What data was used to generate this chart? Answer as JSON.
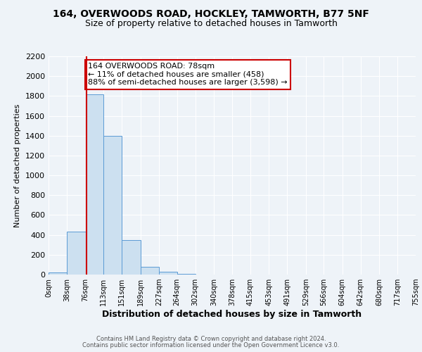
{
  "title1": "164, OVERWOODS ROAD, HOCKLEY, TAMWORTH, B77 5NF",
  "title2": "Size of property relative to detached houses in Tamworth",
  "xlabel": "Distribution of detached houses by size in Tamworth",
  "ylabel": "Number of detached properties",
  "bar_edges": [
    0,
    38,
    76,
    113,
    151,
    189,
    227,
    264,
    302,
    340,
    378,
    415,
    453,
    491,
    529,
    566,
    604,
    642,
    680,
    717,
    755
  ],
  "bar_heights": [
    20,
    430,
    1820,
    1400,
    350,
    75,
    25,
    5,
    0,
    0,
    0,
    0,
    0,
    0,
    0,
    0,
    0,
    0,
    0,
    0
  ],
  "bar_color": "#cce0f0",
  "bar_edge_color": "#5b9bd5",
  "property_size": 78,
  "vline_color": "#cc0000",
  "annotation_text": "164 OVERWOODS ROAD: 78sqm\n← 11% of detached houses are smaller (458)\n88% of semi-detached houses are larger (3,598) →",
  "box_edge_color": "#cc0000",
  "box_face_color": "#ffffff",
  "tick_labels": [
    "0sqm",
    "38sqm",
    "76sqm",
    "113sqm",
    "151sqm",
    "189sqm",
    "227sqm",
    "264sqm",
    "302sqm",
    "340sqm",
    "378sqm",
    "415sqm",
    "453sqm",
    "491sqm",
    "529sqm",
    "566sqm",
    "604sqm",
    "642sqm",
    "680sqm",
    "717sqm",
    "755sqm"
  ],
  "ylim": [
    0,
    2200
  ],
  "yticks": [
    0,
    200,
    400,
    600,
    800,
    1000,
    1200,
    1400,
    1600,
    1800,
    2000,
    2200
  ],
  "footer1": "Contains HM Land Registry data © Crown copyright and database right 2024.",
  "footer2": "Contains public sector information licensed under the Open Government Licence v3.0.",
  "bg_color": "#eef3f8",
  "plot_bg_color": "#eef3f8",
  "title1_fontsize": 10,
  "title2_fontsize": 9,
  "ylabel_fontsize": 8,
  "xlabel_fontsize": 9,
  "tick_fontsize": 7,
  "ytick_fontsize": 8,
  "footer_fontsize": 6,
  "annot_fontsize": 8
}
